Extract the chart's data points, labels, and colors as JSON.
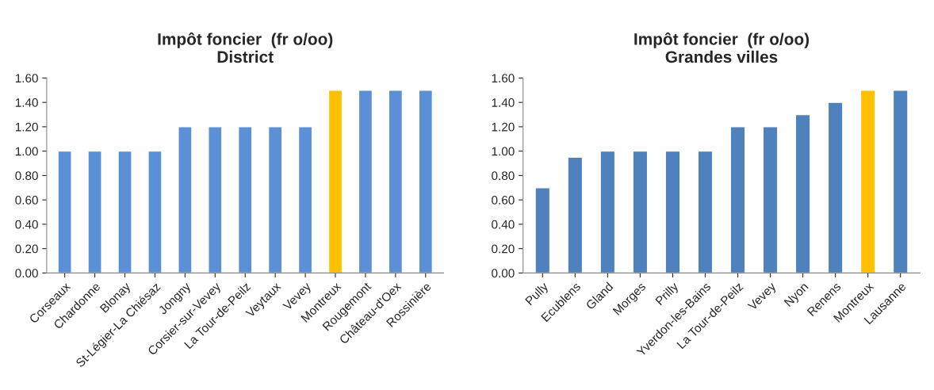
{
  "chart_data": [
    {
      "type": "bar",
      "title": "Impôt foncier  (fr o/oo)",
      "subtitle": "District",
      "categories": [
        "Corseaux",
        "Chardonne",
        "Blonay",
        "St-Légier-La Chiésaz",
        "Jongny",
        "Corsier-sur-Vevey",
        "La Tour-de-Peilz",
        "Veytaux",
        "Vevey",
        "Montreux",
        "Rougemont",
        "Château-d'Oex",
        "Rossinière"
      ],
      "values": [
        1.0,
        1.0,
        1.0,
        1.0,
        1.2,
        1.2,
        1.2,
        1.2,
        1.2,
        1.5,
        1.5,
        1.5,
        1.5
      ],
      "colors": [
        "#5b8fd6",
        "#5b8fd6",
        "#5b8fd6",
        "#5b8fd6",
        "#5b8fd6",
        "#5b8fd6",
        "#5b8fd6",
        "#5b8fd6",
        "#5b8fd6",
        "#ffc000",
        "#5b8fd6",
        "#5b8fd6",
        "#5b8fd6"
      ],
      "ylim": [
        0,
        1.6
      ],
      "yticks": [
        {
          "value": 0,
          "label": "0.00"
        },
        {
          "value": 0.2,
          "label": "0.20"
        },
        {
          "value": 0.4,
          "label": "0.40"
        },
        {
          "value": 0.6,
          "label": "0.60"
        },
        {
          "value": 0.8,
          "label": "0.80"
        },
        {
          "value": 1.0,
          "label": "1.00"
        },
        {
          "value": 1.2,
          "label": "1.20"
        },
        {
          "value": 1.4,
          "label": "1.40"
        },
        {
          "value": 1.6,
          "label": "1.60"
        }
      ],
      "grid": false,
      "legend": false
    },
    {
      "type": "bar",
      "title": "Impôt foncier  (fr o/oo)",
      "subtitle": "Grandes villes",
      "categories": [
        "Pully",
        "Ecublens",
        "Gland",
        "Morges",
        "Prilly",
        "Yverdon-les-Bains",
        "La Tour-de-Peilz",
        "Vevey",
        "Nyon",
        "Renens",
        "Montreux",
        "Lausanne"
      ],
      "values": [
        0.7,
        0.95,
        1.0,
        1.0,
        1.0,
        1.0,
        1.2,
        1.2,
        1.3,
        1.4,
        1.5,
        1.5
      ],
      "colors": [
        "#4f81bd",
        "#4f81bd",
        "#4f81bd",
        "#4f81bd",
        "#4f81bd",
        "#4f81bd",
        "#4f81bd",
        "#4f81bd",
        "#4f81bd",
        "#4f81bd",
        "#ffc000",
        "#4f81bd"
      ],
      "ylim": [
        0,
        1.6
      ],
      "yticks": [
        {
          "value": 0,
          "label": "0.00"
        },
        {
          "value": 0.2,
          "label": "0.20"
        },
        {
          "value": 0.4,
          "label": "0.40"
        },
        {
          "value": 0.6,
          "label": "0.60"
        },
        {
          "value": 0.8,
          "label": "0.80"
        },
        {
          "value": 1.0,
          "label": "1.00"
        },
        {
          "value": 1.2,
          "label": "1.20"
        },
        {
          "value": 1.4,
          "label": "1.40"
        },
        {
          "value": 1.6,
          "label": "1.60"
        }
      ],
      "grid": false,
      "legend": false
    }
  ]
}
